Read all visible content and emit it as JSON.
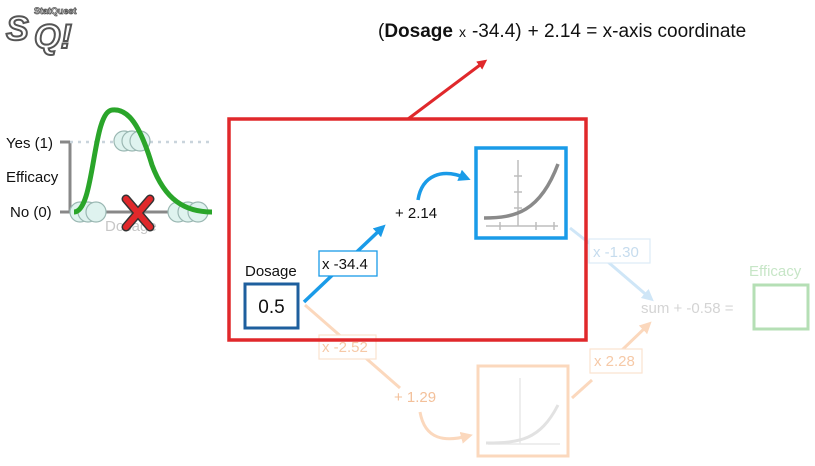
{
  "logo": {
    "text": "StatQuest",
    "colors": {
      "fill": "#ffffff",
      "stroke": "#555555"
    }
  },
  "formula": {
    "open_paren": "(",
    "variable": "Dosage",
    "times": "x",
    "weight": "-34.4)",
    "rest": "+ 2.14 = x-axis coordinate"
  },
  "left_plot": {
    "y_top_label": "Yes (1)",
    "y_axis_label": "Efficacy",
    "y_bottom_label": "No (0)",
    "x_axis_label": "Dosage"
  },
  "network": {
    "input_label": "Dosage",
    "input_value": "0.5",
    "top_weight": "x -34.4",
    "top_bias": "+ 2.14",
    "top_output_weight": "x -1.30",
    "bottom_weight": "x -2.52",
    "bottom_bias": "+ 1.29",
    "bottom_output_weight": "x 2.28",
    "sum_label": "sum + -0.58 =",
    "output_label": "Efficacy"
  },
  "colors": {
    "highlight_red": "#e0282b",
    "blue": "#1a9be8",
    "dark_blue": "#1e5f9e",
    "orange": "#f8b98a",
    "green": "#2aa52a",
    "light_green": "#b5dfb5"
  }
}
